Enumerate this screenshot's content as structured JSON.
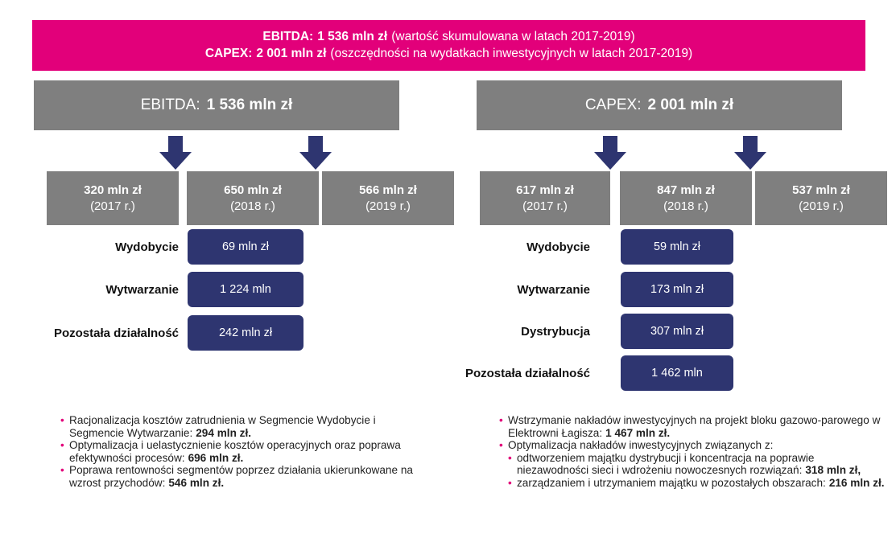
{
  "banner": {
    "line1": {
      "label": "EBITDA:",
      "amount": "1 536 mln zł",
      "note": "(wartość skumulowana w latach 2017-2019)"
    },
    "line2": {
      "label": "CAPEX:",
      "amount": "2 001 mln zł",
      "note": "(oszczędności na wydatkach inwestycyjnych w latach 2017-2019)"
    }
  },
  "panels": [
    {
      "title_label": "EBITDA:",
      "title_amount": "1 536 mln zł",
      "years": [
        {
          "amount": "320 mln zł",
          "year": "(2017 r.)"
        },
        {
          "amount": "650 mln zł",
          "year": "(2018 r.)"
        },
        {
          "amount": "566 mln zł",
          "year": "(2019 r.)"
        }
      ],
      "segments": [
        {
          "name": "Wydobycie",
          "value": "69 mln zł"
        },
        {
          "name": "Wytwarzanie",
          "value": "1 224 mln"
        },
        {
          "name": "Pozostała działalność",
          "value": "242 mln zł"
        }
      ],
      "bullets": [
        {
          "text": "Racjonalizacja kosztów zatrudnienia w Segmencie Wydobycie i Segmencie Wytwarzanie:",
          "bold": "294 mln zł."
        },
        {
          "text": "Optymalizacja i uelastycznienie kosztów operacyjnych oraz poprawa efektywności procesów:",
          "bold": "696 mln zł."
        },
        {
          "text": "Poprawa rentowności segmentów poprzez działania ukierunkowane na wzrost przychodów:",
          "bold": "546 mln zł."
        }
      ]
    },
    {
      "title_label": "CAPEX:",
      "title_amount": "2 001 mln zł",
      "years": [
        {
          "amount": "617 mln zł",
          "year": "(2017 r.)"
        },
        {
          "amount": "847 mln zł",
          "year": "(2018 r.)"
        },
        {
          "amount": "537 mln zł",
          "year": "(2019 r.)"
        }
      ],
      "segments": [
        {
          "name": "Wydobycie",
          "value": "59 mln zł"
        },
        {
          "name": "Wytwarzanie",
          "value": "173 mln zł"
        },
        {
          "name": "Dystrybucja",
          "value": "307 mln zł"
        },
        {
          "name": "Pozostała działalność",
          "value": "1 462 mln"
        }
      ],
      "bullets": [
        {
          "text": "Wstrzymanie nakładów inwestycyjnych na projekt bloku gazowo-parowego w Elektrowni Łagisza:",
          "bold": "1 467 mln zł."
        },
        {
          "text": "Optymalizacja nakładów inwestycyjnych związanych z:",
          "subitems": [
            {
              "text": "odtworzeniem majątku dystrybucji i koncentracja na poprawie niezawodności sieci i wdrożeniu nowoczesnych rozwiązań:",
              "bold": "318 mln zł,"
            },
            {
              "text": "zarządzaniem i utrzymaniem majątku w pozostałych obszarach:",
              "bold": "216 mln zł."
            }
          ]
        }
      ]
    }
  ]
}
